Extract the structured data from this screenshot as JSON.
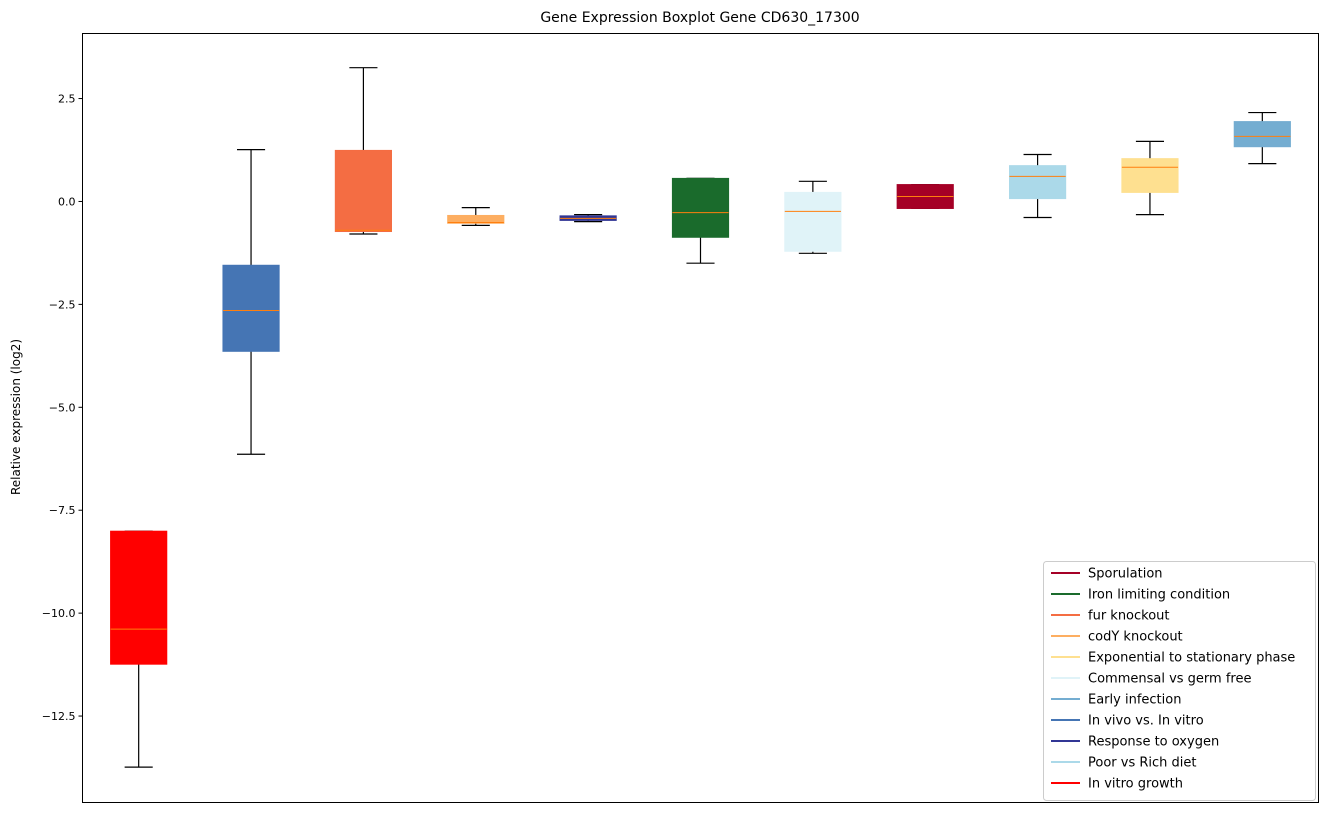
{
  "chart_data": {
    "type": "boxplot",
    "title": "Gene Expression Boxplot Gene CD630_17300",
    "xlabel": "",
    "ylabel": "Relative expression (log2)",
    "ylim": [
      -14.6,
      4.08
    ],
    "yticks": [
      2.5,
      0.0,
      -2.5,
      -5.0,
      -7.5,
      -10.0,
      -12.5
    ],
    "ytick_labels": [
      "2.5",
      "0.0",
      "−2.5",
      "−5.0",
      "−7.5",
      "−10.0",
      "−12.5"
    ],
    "grid": false,
    "legend_placement": "lower-right",
    "median_color": "#ff7f0e",
    "boxes": [
      {
        "name": "In vitro growth",
        "color": "#ff0000",
        "whislo": -13.74,
        "q1": -11.24,
        "med": -10.39,
        "q3": -8.01,
        "whishi": -8.01
      },
      {
        "name": "In vivo vs. In vitro",
        "color": "#4575b4",
        "whislo": -6.14,
        "q1": -3.64,
        "med": -2.65,
        "q3": -1.55,
        "whishi": 1.26
      },
      {
        "name": "fur knockout",
        "color": "#f46d43",
        "whislo": -0.79,
        "q1": -0.73,
        "med": -0.7,
        "q3": 1.24,
        "whishi": 3.25
      },
      {
        "name": "codY knockout",
        "color": "#fdae61",
        "whislo": -0.58,
        "q1": -0.53,
        "med": -0.51,
        "q3": -0.34,
        "whishi": -0.15
      },
      {
        "name": "Response to oxygen",
        "color": "#313695",
        "whislo": -0.49,
        "q1": -0.46,
        "med": -0.41,
        "q3": -0.35,
        "whishi": -0.32
      },
      {
        "name": "Iron limiting condition",
        "color": "#1a6b2c",
        "whislo": -1.5,
        "q1": -0.87,
        "med": -0.27,
        "q3": 0.56,
        "whishi": 0.56
      },
      {
        "name": "Commensal vs germ free",
        "color": "#e0f3f8",
        "whislo": -1.26,
        "q1": -1.21,
        "med": -0.24,
        "q3": 0.22,
        "whishi": 0.49
      },
      {
        "name": "Sporulation",
        "color": "#a50026",
        "whislo": -0.17,
        "q1": -0.17,
        "med": 0.12,
        "q3": 0.41,
        "whishi": 0.41
      },
      {
        "name": "Poor vs Rich diet",
        "color": "#abd9e9",
        "whislo": -0.39,
        "q1": 0.07,
        "med": 0.61,
        "q3": 0.87,
        "whishi": 1.14
      },
      {
        "name": "Exponential to stationary phase",
        "color": "#fee090",
        "whislo": -0.32,
        "q1": 0.22,
        "med": 0.83,
        "q3": 1.04,
        "whishi": 1.46
      },
      {
        "name": "Early infection",
        "color": "#74add1",
        "whislo": 0.92,
        "q1": 1.33,
        "med": 1.58,
        "q3": 1.94,
        "whishi": 2.16
      }
    ],
    "legend": [
      {
        "label": "Sporulation",
        "color": "#a50026"
      },
      {
        "label": "Iron limiting condition",
        "color": "#1a6b2c"
      },
      {
        "label": "fur knockout",
        "color": "#f46d43"
      },
      {
        "label": "codY knockout",
        "color": "#fdae61"
      },
      {
        "label": "Exponential to stationary phase",
        "color": "#fee090"
      },
      {
        "label": "Commensal vs germ free",
        "color": "#e0f3f8"
      },
      {
        "label": "Early infection",
        "color": "#74add1"
      },
      {
        "label": "In vivo vs. In vitro",
        "color": "#4575b4"
      },
      {
        "label": "Response to oxygen",
        "color": "#313695"
      },
      {
        "label": "Poor vs Rich diet",
        "color": "#abd9e9"
      },
      {
        "label": "In vitro growth",
        "color": "#ff0000"
      }
    ]
  }
}
